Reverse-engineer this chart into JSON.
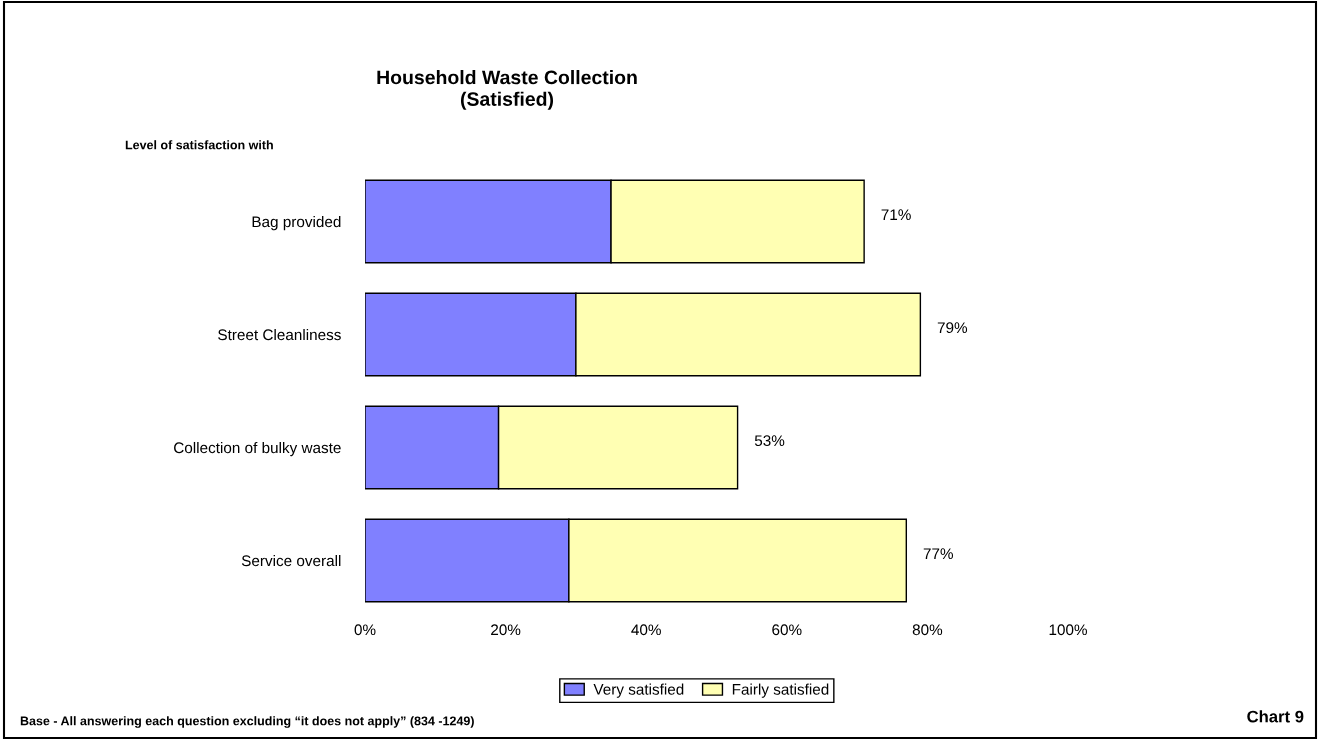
{
  "chart_data": {
    "type": "bar",
    "orientation": "horizontal",
    "stacked": true,
    "title": "Household Waste Collection\n(Satisfied)",
    "categories": [
      "Bag provided",
      "Street Cleanliness",
      "Collection of bulky waste",
      "Service overall"
    ],
    "series": [
      {
        "name": "Very satisfied",
        "color": "#8080ff",
        "values": [
          35,
          30,
          19,
          29
        ]
      },
      {
        "name": "Fairly satisfied",
        "color": "#ffffb3",
        "values": [
          36,
          49,
          34,
          48
        ]
      }
    ],
    "totals": [
      "71%",
      "79%",
      "53%",
      "77%"
    ],
    "xlim": [
      0,
      100
    ],
    "xticks": [
      {
        "value": 0,
        "label": "0%"
      },
      {
        "value": 20,
        "label": "20%"
      },
      {
        "value": 40,
        "label": "40%"
      },
      {
        "value": 60,
        "label": "60%"
      },
      {
        "value": 80,
        "label": "80%"
      },
      {
        "value": 100,
        "label": "100%"
      }
    ],
    "legend": "bottom",
    "annotations": [
      "Level of satisfaction with",
      "Base - All answering each question excluding “it does not apply” (834 -1249)",
      "Chart 9"
    ]
  }
}
